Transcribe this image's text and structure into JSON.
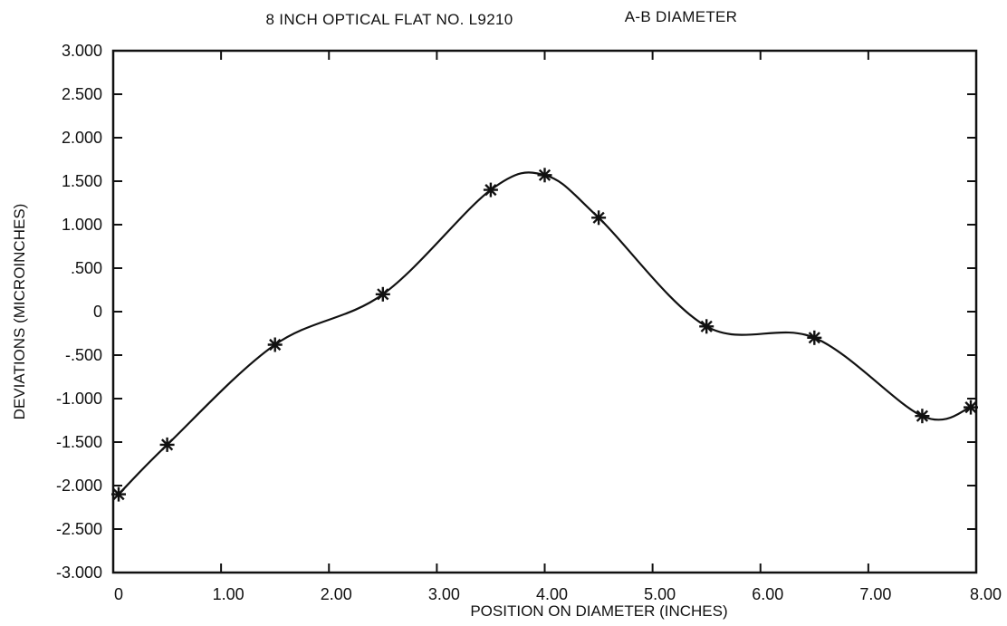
{
  "chart_data": {
    "type": "line",
    "title_left": "8 INCH OPTICAL FLAT NO. L9210",
    "title_right": "A-B DIAMETER",
    "xlabel": "POSITION ON DIAMETER (INCHES)",
    "ylabel": "DEVIATIONS (MICROINCHES)",
    "xlim": [
      0,
      8
    ],
    "ylim": [
      -3,
      3
    ],
    "grid": false,
    "x_ticks": [
      0,
      1,
      2,
      3,
      4,
      5,
      6,
      7,
      8
    ],
    "x_tick_labels": [
      "0",
      "1.00",
      "2.00",
      "3.00",
      "4.00",
      "5.00",
      "6.00",
      "7.00",
      "8.00"
    ],
    "y_ticks": [
      3,
      2.5,
      2,
      1.5,
      1,
      0.5,
      0,
      -0.5,
      -1,
      -1.5,
      -2,
      -2.5,
      -3
    ],
    "y_tick_labels": [
      "3.000",
      "2.500",
      "2.000",
      "1.500",
      "1.000",
      ".500",
      "0",
      "-.500",
      "-1.000",
      "-1.500",
      "-2.000",
      "-2.500",
      "-3.000"
    ],
    "series": [
      {
        "marker": "asterisk",
        "x": [
          0.05,
          0.5,
          1.5,
          2.5,
          3.5,
          4.0,
          4.5,
          5.5,
          6.5,
          7.5,
          7.95
        ],
        "y": [
          -2.1,
          -1.53,
          -0.38,
          0.2,
          1.4,
          1.57,
          1.08,
          -0.17,
          -0.3,
          -1.2,
          -1.1
        ]
      }
    ],
    "line_color": "#111111"
  }
}
